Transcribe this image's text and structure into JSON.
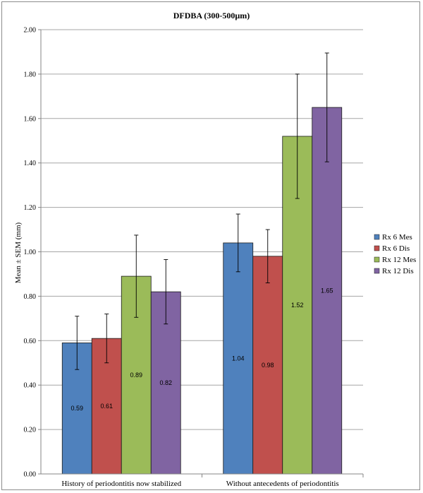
{
  "chart_data": {
    "type": "bar",
    "title": "DFDBA (300-500µm)",
    "xlabel": "",
    "ylabel": "Mean ± SEM (mm)",
    "ylim": [
      0,
      2.0
    ],
    "ytick_step": 0.2,
    "yticks": [
      "0.00",
      "0.20",
      "0.40",
      "0.60",
      "0.80",
      "1.00",
      "1.20",
      "1.40",
      "1.60",
      "1.80",
      "2.00"
    ],
    "grid": "horizontal",
    "legend_position": "right",
    "categories": [
      "History of periodontitis now stabilized",
      "Without antecedents of periodontitis"
    ],
    "series": [
      {
        "name": "Rx 6 Mes",
        "color": "#4f81bd",
        "values": [
          0.59,
          1.04
        ],
        "errors": [
          0.12,
          0.13
        ],
        "labels": [
          "0.59",
          "1.04"
        ]
      },
      {
        "name": "Rx 6 Dis",
        "color": "#c0504d",
        "values": [
          0.61,
          0.98
        ],
        "errors": [
          0.11,
          0.12
        ],
        "labels": [
          "0.61",
          "0.98"
        ]
      },
      {
        "name": "Rx 12 Mes",
        "color": "#9bbb59",
        "values": [
          0.89,
          1.52
        ],
        "errors": [
          0.185,
          0.28
        ],
        "labels": [
          "0.89",
          "1.52"
        ]
      },
      {
        "name": "Rx 12 Dis",
        "color": "#8064a2",
        "values": [
          0.82,
          1.65
        ],
        "errors": [
          0.145,
          0.245
        ],
        "labels": [
          "0.82",
          "1.65"
        ]
      }
    ]
  }
}
